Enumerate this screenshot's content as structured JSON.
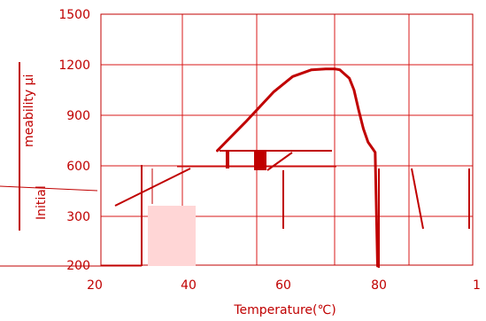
{
  "chart_data": {
    "type": "line",
    "xlabel": "Temperature(℃)",
    "ylabel": "Initial permeability μi",
    "ylabel_visible_parts": {
      "lower": "Initial",
      "upper": "meability μi"
    },
    "x_ticks": [
      "20",
      "40",
      "60",
      "80",
      "1"
    ],
    "y_ticks": [
      "1500",
      "1200",
      "900",
      "600",
      "300",
      "200"
    ],
    "xlim": [
      20,
      100
    ],
    "ylim": [
      0,
      1500
    ],
    "grid": true,
    "series": [
      {
        "x": [
          46,
          52,
          58,
          62,
          66,
          69,
          71,
          72,
          74,
          75,
          76,
          77,
          78,
          79,
          79.5,
          80
        ],
        "y": [
          690,
          860,
          1040,
          1130,
          1170,
          1175,
          1175,
          1170,
          1120,
          1050,
          930,
          820,
          740,
          700,
          680,
          0
        ]
      }
    ]
  },
  "colors": {
    "primary": "#c00000",
    "grid": "#d81818",
    "shade": "#ffd6d6",
    "background": "#ffffff"
  }
}
